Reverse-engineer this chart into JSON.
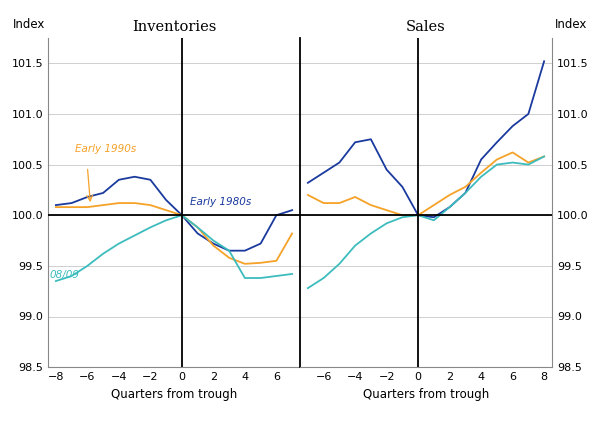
{
  "inv_quarters": [
    -8,
    -7,
    -6,
    -5,
    -4,
    -3,
    -2,
    -1,
    0,
    1,
    2,
    3,
    4,
    5,
    6,
    7
  ],
  "inv_1980s": [
    100.1,
    100.12,
    100.18,
    100.22,
    100.35,
    100.38,
    100.35,
    100.15,
    100.0,
    99.82,
    99.72,
    99.65,
    99.65,
    99.72,
    100.0,
    100.05
  ],
  "inv_1990s": [
    100.08,
    100.08,
    100.08,
    100.1,
    100.12,
    100.12,
    100.1,
    100.05,
    100.0,
    99.88,
    99.7,
    99.58,
    99.52,
    99.53,
    99.55,
    99.82
  ],
  "inv_0809": [
    99.35,
    99.4,
    99.5,
    99.62,
    99.72,
    99.8,
    99.88,
    99.95,
    100.0,
    99.88,
    99.75,
    99.65,
    99.38,
    99.38,
    99.4,
    99.42
  ],
  "sal_quarters": [
    -7,
    -6,
    -5,
    -4,
    -3,
    -2,
    -1,
    0,
    1,
    2,
    3,
    4,
    5,
    6,
    7,
    8
  ],
  "sal_1980s": [
    100.32,
    100.42,
    100.52,
    100.72,
    100.75,
    100.45,
    100.28,
    100.0,
    99.98,
    100.08,
    100.22,
    100.55,
    100.72,
    100.88,
    101.0,
    101.52
  ],
  "sal_1990s": [
    100.2,
    100.12,
    100.12,
    100.18,
    100.1,
    100.05,
    100.0,
    100.0,
    100.1,
    100.2,
    100.28,
    100.42,
    100.55,
    100.62,
    100.52,
    100.58
  ],
  "sal_0809": [
    99.28,
    99.38,
    99.52,
    99.7,
    99.82,
    99.92,
    99.98,
    100.0,
    99.95,
    100.08,
    100.22,
    100.38,
    100.5,
    100.52,
    100.5,
    100.58
  ],
  "color_1980s": "#1a3a9e",
  "color_1990s": "#f5a228",
  "color_0809": "#3dbcbe",
  "ylim": [
    98.5,
    101.75
  ],
  "yticks": [
    98.5,
    99.0,
    99.5,
    100.0,
    100.5,
    101.0,
    101.5
  ],
  "inv_xlim": [
    -8.5,
    7.5
  ],
  "sal_xlim": [
    -7.5,
    8.5
  ],
  "inv_xticks": [
    -8,
    -6,
    -4,
    -2,
    0,
    2,
    4,
    6
  ],
  "sal_xticks": [
    -6,
    -4,
    -2,
    0,
    2,
    4,
    6,
    8
  ],
  "xlabel": "Quarters from trough",
  "left_ylabel": "Index",
  "right_ylabel": "Index",
  "inv_title": "Inventories",
  "sal_title": "Sales",
  "bg_color": "#ffffff",
  "grid_color": "#c8c8c8",
  "spine_color": "#888888"
}
